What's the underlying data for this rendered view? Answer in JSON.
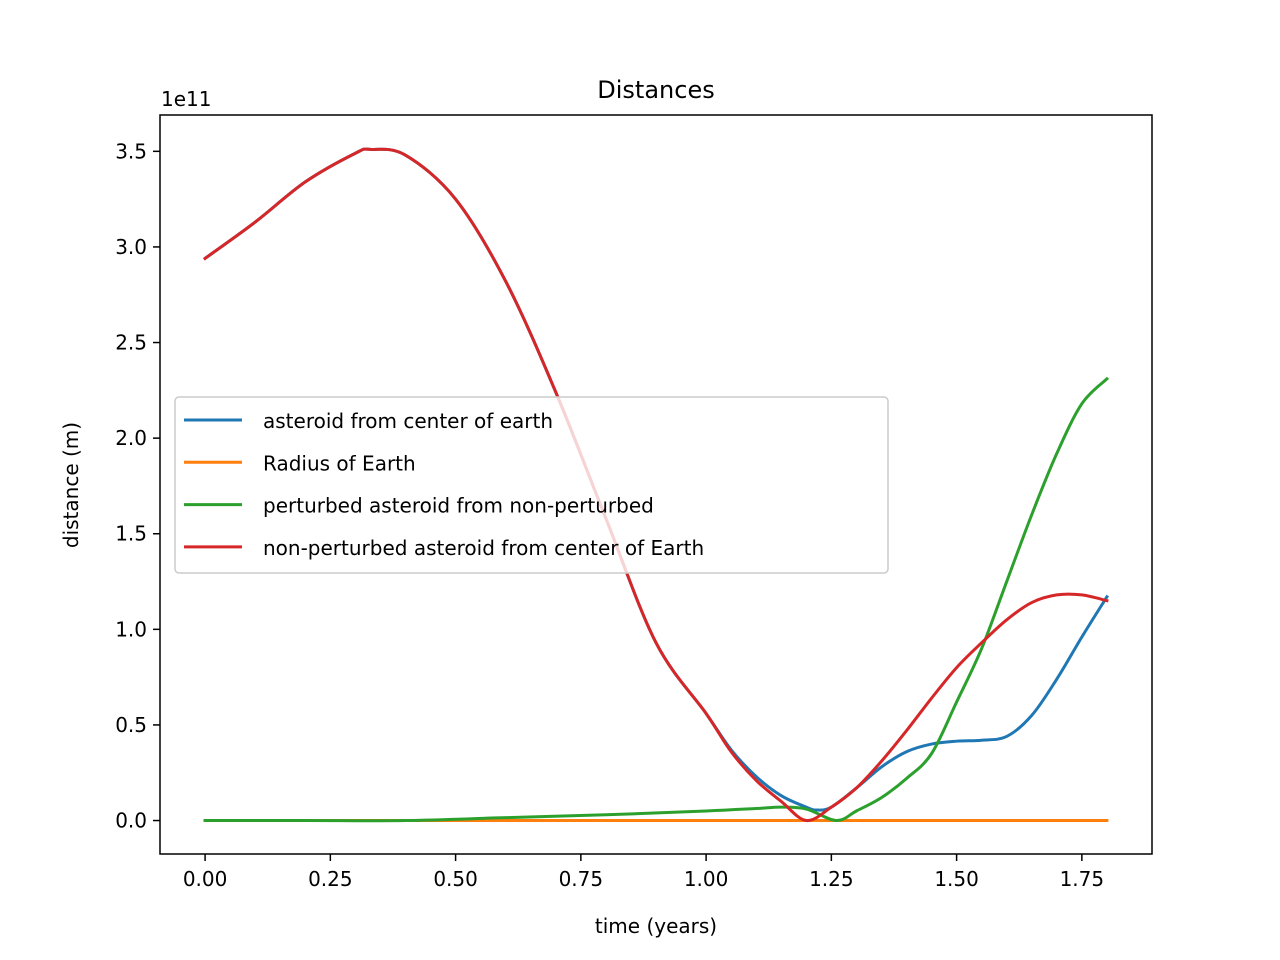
{
  "chart_data": {
    "type": "line",
    "title": "Distances",
    "xlabel": "time (years)",
    "ylabel": "distance (m)",
    "y_offset_label": "1e11",
    "y_scale": 100000000000.0,
    "xlim": [
      -0.09,
      1.89
    ],
    "ylim": [
      -0.175,
      3.69
    ],
    "xticks": [
      0.0,
      0.25,
      0.5,
      0.75,
      1.0,
      1.25,
      1.5,
      1.75
    ],
    "xtick_labels": [
      "0.00",
      "0.25",
      "0.50",
      "0.75",
      "1.00",
      "1.25",
      "1.50",
      "1.75"
    ],
    "yticks": [
      0.0,
      0.5,
      1.0,
      1.5,
      2.0,
      2.5,
      3.0,
      3.5
    ],
    "ytick_labels": [
      "0.0",
      "0.5",
      "1.0",
      "1.5",
      "2.0",
      "2.5",
      "3.0",
      "3.5"
    ],
    "grid": false,
    "legend_position": "center-left",
    "series": [
      {
        "name": "asteroid from center of earth",
        "color": "#1f77b4",
        "x": [
          0.0,
          0.1,
          0.2,
          0.3,
          0.33,
          0.4,
          0.5,
          0.6,
          0.7,
          0.8,
          0.9,
          1.0,
          1.05,
          1.1,
          1.15,
          1.2,
          1.22,
          1.25,
          1.3,
          1.35,
          1.4,
          1.45,
          1.5,
          1.55,
          1.6,
          1.65,
          1.7,
          1.75,
          1.8
        ],
        "y": [
          2.94,
          3.13,
          3.34,
          3.49,
          3.51,
          3.48,
          3.25,
          2.82,
          2.24,
          1.58,
          0.93,
          0.56,
          0.37,
          0.23,
          0.13,
          0.07,
          0.055,
          0.07,
          0.17,
          0.28,
          0.36,
          0.4,
          0.415,
          0.42,
          0.44,
          0.55,
          0.74,
          0.96,
          1.17
        ]
      },
      {
        "name": "Radius of Earth",
        "color": "#ff7f0e",
        "x": [
          0.0,
          1.8
        ],
        "y": [
          0.0,
          0.0
        ]
      },
      {
        "name": "perturbed asteroid from non-perturbed",
        "color": "#2ca02c",
        "x": [
          0.0,
          0.2,
          0.4,
          0.6,
          0.8,
          1.0,
          1.1,
          1.15,
          1.2,
          1.26,
          1.3,
          1.35,
          1.4,
          1.45,
          1.5,
          1.55,
          1.6,
          1.65,
          1.7,
          1.75,
          1.8
        ],
        "y": [
          0.0,
          0.0,
          0.0,
          0.015,
          0.03,
          0.05,
          0.063,
          0.07,
          0.06,
          0.0,
          0.05,
          0.12,
          0.22,
          0.35,
          0.62,
          0.9,
          1.25,
          1.6,
          1.92,
          2.18,
          2.31
        ]
      },
      {
        "name": "non-perturbed asteroid from center of Earth",
        "color": "#d62728",
        "x": [
          0.0,
          0.1,
          0.2,
          0.3,
          0.33,
          0.4,
          0.5,
          0.6,
          0.7,
          0.8,
          0.9,
          1.0,
          1.05,
          1.1,
          1.15,
          1.2,
          1.25,
          1.3,
          1.35,
          1.4,
          1.45,
          1.5,
          1.55,
          1.6,
          1.65,
          1.7,
          1.75,
          1.8
        ],
        "y": [
          2.94,
          3.13,
          3.34,
          3.49,
          3.51,
          3.48,
          3.25,
          2.82,
          2.24,
          1.58,
          0.93,
          0.56,
          0.36,
          0.21,
          0.1,
          0.0,
          0.07,
          0.17,
          0.31,
          0.47,
          0.64,
          0.8,
          0.93,
          1.05,
          1.14,
          1.18,
          1.18,
          1.15
        ]
      }
    ]
  }
}
